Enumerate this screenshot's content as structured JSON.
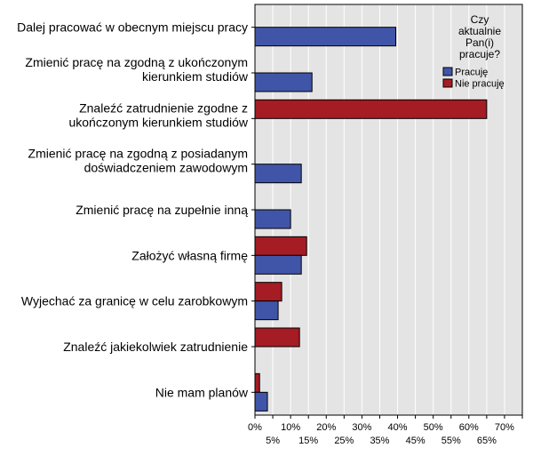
{
  "chart_data": {
    "type": "bar",
    "orientation": "horizontal",
    "categories": [
      [
        "Dalej pracować w obecnym miejscu pracy"
      ],
      [
        "Zmienić pracę na zgodną z ukończonym",
        "kierunkiem studiów"
      ],
      [
        "Znaleźć zatrudnienie zgodne z",
        "ukończonym kierunkiem studiów"
      ],
      [
        "Zmienić pracę na zgodną z posiadanym",
        "doświadczeniem zawodowym"
      ],
      [
        "Zmienić pracę na zupełnie inną"
      ],
      [
        "Założyć własną firmę"
      ],
      [
        "Wyjechać za granicę w celu zarobkowym"
      ],
      [
        "Znaleźć jakiekolwiek zatrudnienie"
      ],
      [
        "Nie mam planów"
      ]
    ],
    "series": [
      {
        "name": "Pracuję",
        "color": "#4055a8",
        "values": [
          39.5,
          16,
          null,
          13,
          10,
          13,
          6.5,
          null,
          3.5
        ]
      },
      {
        "name": "Nie pracuję",
        "color": "#a51c24",
        "values": [
          null,
          null,
          65,
          null,
          null,
          14.5,
          7.5,
          12.5,
          1.3
        ]
      }
    ],
    "xlim": [
      0,
      75
    ],
    "x_ticks_top_row": [
      "0%",
      "10%",
      "20%",
      "30%",
      "40%",
      "50%",
      "60%",
      "70%"
    ],
    "x_ticks_bottom_row": [
      "5%",
      "15%",
      "25%",
      "35%",
      "45%",
      "55%",
      "65%"
    ],
    "grid": true,
    "legend": {
      "title": [
        "Czy",
        "aktualnie",
        "Pan(i)",
        "pracuje?"
      ],
      "position": "top-right"
    },
    "plot_background": "#e4e4e4"
  }
}
